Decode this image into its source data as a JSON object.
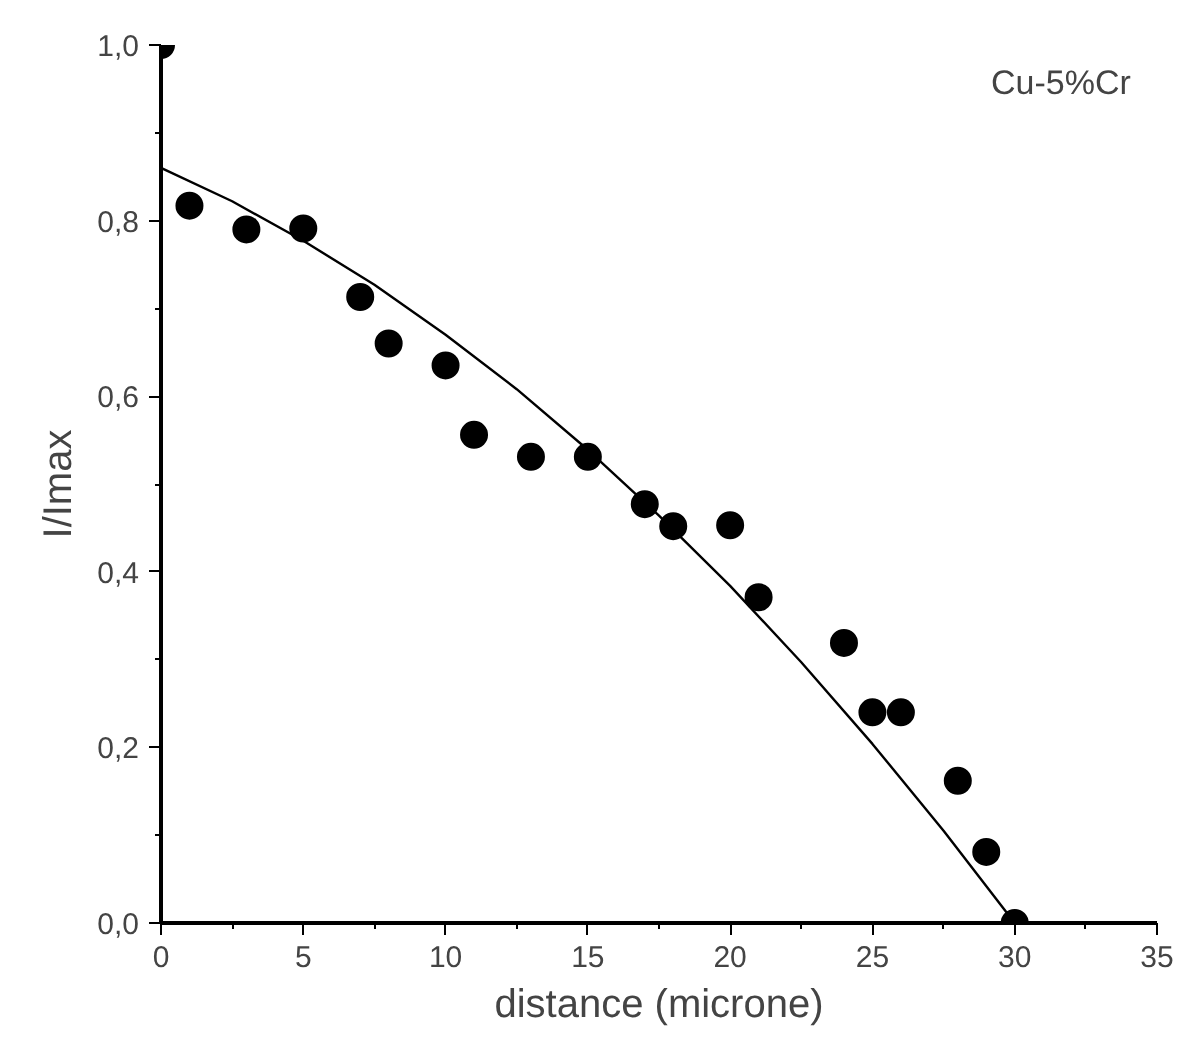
{
  "chart_data": {
    "type": "scatter",
    "xlabel": "distance (microne)",
    "ylabel": "I/Imax",
    "annotations": [
      "Cu-5%Cr"
    ],
    "xlim": [
      0,
      35
    ],
    "ylim": [
      0,
      1.0
    ],
    "xticks": [
      0,
      5,
      10,
      15,
      20,
      25,
      30,
      35
    ],
    "yticks": [
      {
        "value": 0,
        "label": "0,0"
      },
      {
        "value": 0.2,
        "label": "0,2"
      },
      {
        "value": 0.4,
        "label": "0,4"
      },
      {
        "value": 0.6,
        "label": "0,6"
      },
      {
        "value": 0.8,
        "label": "0,8"
      },
      {
        "value": 1.0,
        "label": "1,0"
      }
    ],
    "grid": false,
    "marker": "circle",
    "series": [
      {
        "color": "#000000",
        "x": [
          0,
          1,
          3,
          5,
          7,
          8,
          10,
          11,
          13,
          15,
          17,
          18,
          20,
          21,
          24,
          25,
          26,
          28,
          29,
          30
        ],
        "values": [
          1.0,
          0.817,
          0.79,
          0.791,
          0.713,
          0.66,
          0.635,
          0.556,
          0.531,
          0.531,
          0.477,
          0.452,
          0.453,
          0.371,
          0.319,
          0.24,
          0.24,
          0.162,
          0.081,
          0.0
        ]
      },
      {
        "type": "line",
        "marker": "none",
        "color": "#000000",
        "line_style": "solid",
        "x": [
          0,
          2.5,
          5,
          7.5,
          10,
          12.5,
          15,
          17.5,
          20,
          22.5,
          25,
          27.5,
          30
        ],
        "values": [
          0.86,
          0.822,
          0.777,
          0.727,
          0.67,
          0.608,
          0.539,
          0.464,
          0.384,
          0.297,
          0.204,
          0.105,
          0.0
        ]
      }
    ]
  }
}
